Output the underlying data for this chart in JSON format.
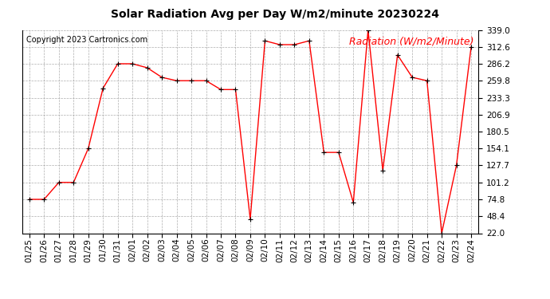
{
  "title": "Solar Radiation Avg per Day W/m2/minute 20230224",
  "copyright": "Copyright 2023 Cartronics.com",
  "legend_label": "Radiation (W/m2/Minute)",
  "dates": [
    "01/25",
    "01/26",
    "01/27",
    "01/28",
    "01/29",
    "01/30",
    "01/31",
    "02/01",
    "02/02",
    "02/03",
    "02/04",
    "02/05",
    "02/06",
    "02/07",
    "02/08",
    "02/09",
    "02/10",
    "02/11",
    "02/12",
    "02/13",
    "02/14",
    "02/15",
    "02/16",
    "02/17",
    "02/18",
    "02/19",
    "02/20",
    "02/21",
    "02/22",
    "02/23",
    "02/24"
  ],
  "values": [
    74.8,
    74.8,
    101.2,
    101.2,
    154.1,
    248.0,
    286.2,
    286.2,
    280.0,
    265.0,
    259.8,
    259.8,
    259.8,
    246.0,
    246.0,
    44.0,
    322.0,
    316.0,
    316.0,
    322.0,
    148.0,
    148.0,
    70.0,
    339.0,
    120.0,
    300.0,
    265.0,
    259.8,
    22.0,
    127.7,
    312.6
  ],
  "ylim_min": 22.0,
  "ylim_max": 339.0,
  "yticks": [
    22.0,
    48.4,
    74.8,
    101.2,
    127.7,
    154.1,
    180.5,
    206.9,
    233.3,
    259.8,
    286.2,
    312.6,
    339.0
  ],
  "line_color": "red",
  "marker_color": "black",
  "background_color": "#ffffff",
  "grid_color": "#999999",
  "title_fontsize": 10,
  "copyright_fontsize": 7,
  "legend_fontsize": 9,
  "tick_fontsize": 7.5
}
